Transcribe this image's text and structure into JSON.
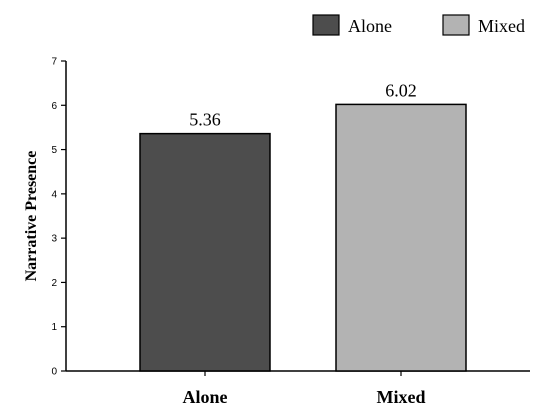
{
  "chart_data": {
    "type": "bar",
    "categories": [
      "Alone",
      "Mixed"
    ],
    "values": [
      5.36,
      6.02
    ],
    "value_labels": [
      "5.36",
      "6.02"
    ],
    "ylabel": "Narrative Presence",
    "xlabel": "",
    "ylim": [
      0,
      7
    ],
    "yticks": [
      0,
      1,
      2,
      3,
      4,
      5,
      6,
      7
    ],
    "ytick_labels": [
      "0",
      "1",
      "2",
      "3",
      "4",
      "5",
      "6",
      "7"
    ],
    "grid": false,
    "legend": {
      "placement": "top-right",
      "entries": [
        "Alone",
        "Mixed"
      ]
    },
    "colors": [
      "#4d4d4d",
      "#b3b3b3"
    ],
    "edge_color": "#000000"
  }
}
